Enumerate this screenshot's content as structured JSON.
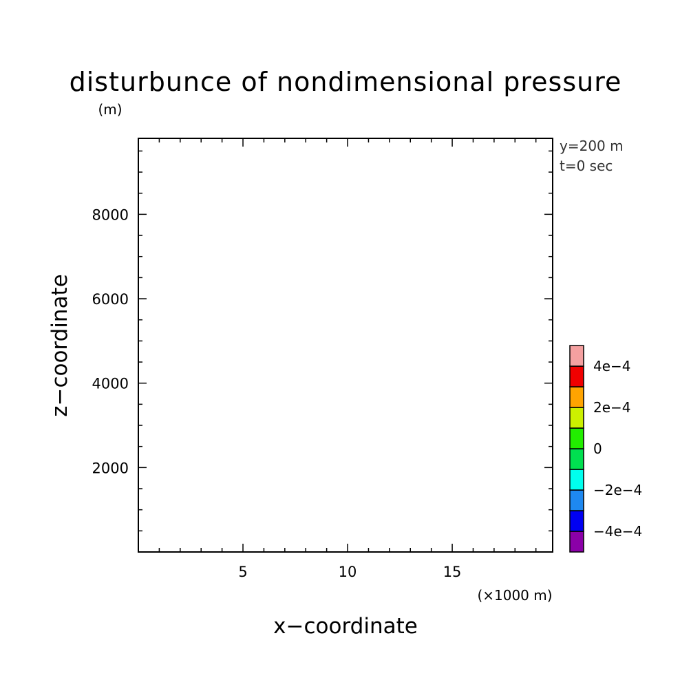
{
  "chart_data": {
    "type": "heatmap",
    "title": "disturbunce of nondimensional pressure",
    "ylabel": "z−coordinate",
    "xlabel": "x−coordinate",
    "yunit": "(m)",
    "xunit": "(×1000 m)",
    "xlim": [
      0,
      19.8
    ],
    "ylim": [
      0,
      9800
    ],
    "xticks_major": [
      5,
      10,
      15
    ],
    "xticks_major_labels": [
      "5",
      "10",
      "15"
    ],
    "xticks_minor": [
      1,
      2,
      3,
      4,
      6,
      7,
      8,
      9,
      11,
      12,
      13,
      14,
      16,
      17,
      18,
      19
    ],
    "yticks_major": [
      2000,
      4000,
      6000,
      8000
    ],
    "yticks_major_labels": [
      "2000",
      "4000",
      "6000",
      "8000"
    ],
    "yticks_minor": [
      500,
      1000,
      1500,
      2500,
      3000,
      3500,
      4500,
      5000,
      5500,
      6500,
      7000,
      7500,
      8500,
      9000,
      9500
    ],
    "info_lines": [
      "y=200 m",
      "t=0 sec"
    ],
    "field_values": "empty (uniform, no contours shown)",
    "colorbar": {
      "boundaries": [
        -0.0005,
        -0.0004,
        -0.0003,
        -0.0002,
        -0.0001,
        0,
        0.0001,
        0.0002,
        0.0003,
        0.0004,
        0.0005
      ],
      "colors": [
        "#8b00a8",
        "#0000f2",
        "#1e88f0",
        "#00ffee",
        "#00e050",
        "#22ee00",
        "#ccf000",
        "#ffa400",
        "#f00000",
        "#f4a0a0"
      ],
      "labels": [
        {
          "value": -0.0004,
          "text": "−4e−4"
        },
        {
          "value": -0.0002,
          "text": "−2e−4"
        },
        {
          "value": 0,
          "text": "0"
        },
        {
          "value": 0.0002,
          "text": "2e−4"
        },
        {
          "value": 0.0004,
          "text": "4e−4"
        }
      ]
    }
  }
}
